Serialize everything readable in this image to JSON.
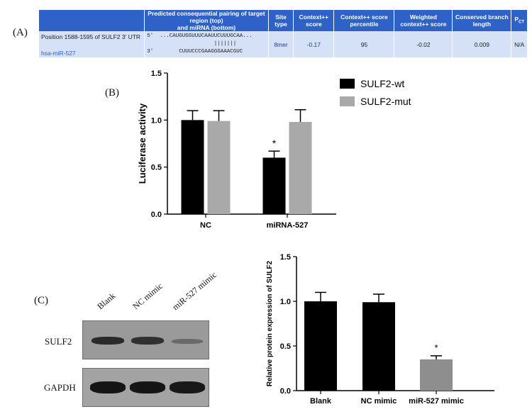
{
  "panels": {
    "a": "(A)",
    "b": "(B)",
    "c": "(C)"
  },
  "table": {
    "headers": {
      "position": "",
      "pairing_line1": "Predicted consequential pairing of target region (top)",
      "pairing_line2": "and miRNA (bottom)",
      "site_type": "Site type",
      "context_score": "Context++ score",
      "context_percentile": "Context++ score percentile",
      "weighted": "Weighted context++ score",
      "branch": "Conserved branch length",
      "pct": "P",
      "pct_sub": "CT"
    },
    "row": {
      "position": "Position 1588-1595 of SULF2 3' UTR",
      "mirna": "hsa-miR-527",
      "target_seq": "5'  ...CAUGUGGUUUCAAUUCUUUGCAA...",
      "pairing_bars": "                     |||||||",
      "mirna_seq": "3'        CUUUCCCGAAGGGAAACGUC",
      "site_type": "8mer",
      "context_score": "-0.17",
      "context_percentile": "95",
      "weighted": "-0.02",
      "branch": "0.009",
      "pct": "N/A"
    }
  },
  "chart_data": [
    {
      "type": "bar",
      "ylabel": "Luciferase activity",
      "categories": [
        "NC",
        "miRNA-527"
      ],
      "ylim": [
        0,
        1.5
      ],
      "yticks": [
        "0.0",
        "0.5",
        "1.0",
        "1.5"
      ],
      "series": [
        {
          "name": "SULF2-wt",
          "values": [
            1.0,
            0.6
          ],
          "errors": [
            0.1,
            0.07
          ],
          "color": "#000000"
        },
        {
          "name": "SULF2-mut",
          "values": [
            0.99,
            0.98
          ],
          "errors": [
            0.11,
            0.13
          ],
          "color": "#a9a9a9"
        }
      ],
      "annotations": [
        {
          "category": "miRNA-527",
          "series": "SULF2-wt",
          "text": "*"
        }
      ],
      "legend": "right"
    },
    {
      "type": "bar",
      "ylabel": "Relative protein expression of SULF2",
      "categories": [
        "Blank",
        "NC mimic",
        "miR-527 mimic"
      ],
      "ylim": [
        0,
        1.5
      ],
      "yticks": [
        "0.0",
        "0.5",
        "1.0",
        "1.5"
      ],
      "values": [
        1.0,
        0.99,
        0.35
      ],
      "errors": [
        0.1,
        0.09,
        0.04
      ],
      "colors": [
        "#000000",
        "#000000",
        "#8e8e8e"
      ],
      "annotations": [
        {
          "category": "miR-527 mimic",
          "text": "*"
        }
      ]
    }
  ],
  "blot": {
    "lanes": [
      "Blank",
      "NC mimic",
      "miR-527 mimic"
    ],
    "rows": [
      "SULF2",
      "GAPDH"
    ]
  }
}
